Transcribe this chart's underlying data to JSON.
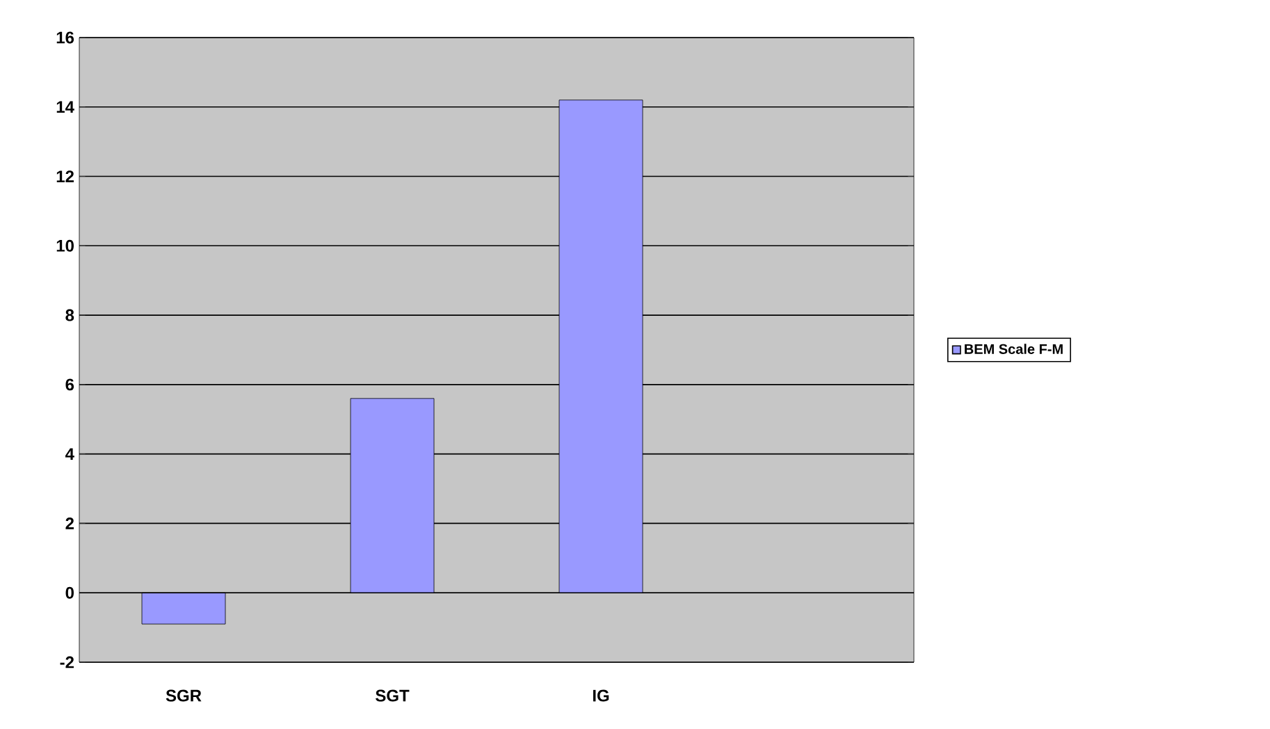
{
  "chart_data": {
    "type": "bar",
    "categories": [
      "SGR",
      "SGT",
      "IG",
      null
    ],
    "series": [
      {
        "name": "BEM Scale F-M",
        "color": "#9999ff",
        "values": [
          -0.9,
          5.6,
          14.2,
          null
        ]
      }
    ],
    "ylim": [
      -2,
      16
    ],
    "yticks": [
      -2,
      0,
      2,
      4,
      6,
      8,
      10,
      12,
      14,
      16
    ],
    "grid": "y",
    "legend": "right"
  }
}
